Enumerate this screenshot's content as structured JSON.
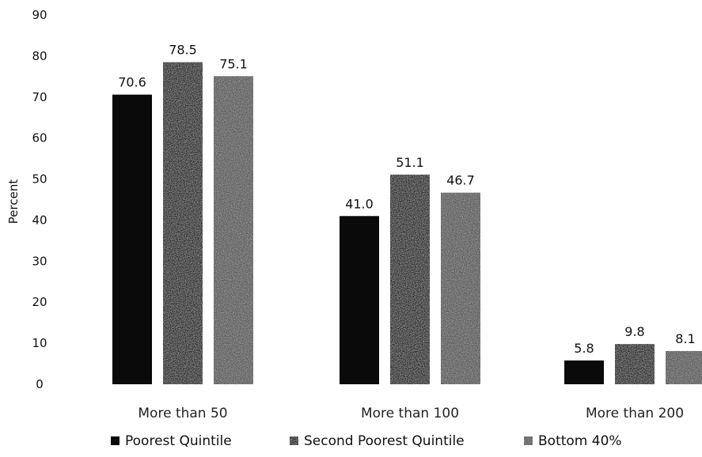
{
  "chart_data": {
    "type": "bar",
    "title": "",
    "xlabel": "",
    "ylabel": "Percent",
    "ylim": [
      0,
      90
    ],
    "yticks": [
      0,
      10,
      20,
      30,
      40,
      50,
      60,
      70,
      80,
      90
    ],
    "categories": [
      "More than 50",
      "More than 100",
      "More than 200"
    ],
    "series": [
      {
        "name": "Poorest Quintile",
        "values": [
          70.6,
          41.0,
          5.8
        ],
        "labels": [
          "70.6",
          "41.0",
          "5.8"
        ],
        "color": "#0a0a0a"
      },
      {
        "name": "Second Poorest Quintile",
        "values": [
          78.5,
          51.1,
          9.8
        ],
        "labels": [
          "78.5",
          "51.1",
          "9.8"
        ],
        "color": "#2b2b2b"
      },
      {
        "name": "Bottom 40%",
        "values": [
          75.1,
          46.7,
          8.1
        ],
        "labels": [
          "75.1",
          "46.7",
          "8.1"
        ],
        "color": "#5a5a5a"
      }
    ],
    "grid": false,
    "legend_position": "bottom"
  }
}
